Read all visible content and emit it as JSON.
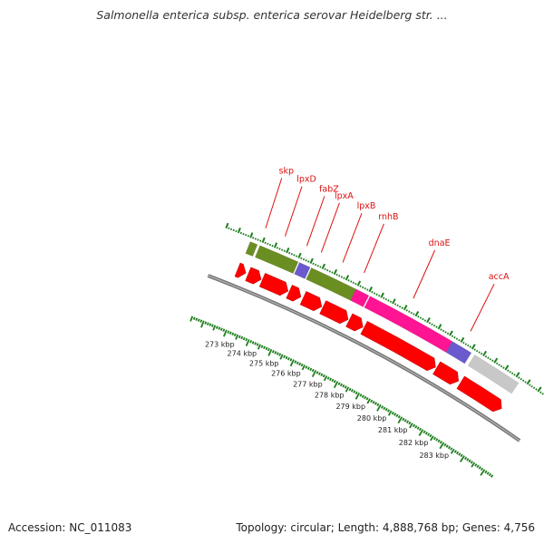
{
  "title": "Salmonella enterica subsp. enterica serovar Heidelberg str. ...",
  "accession": "Accession: NC_011083",
  "summary": "Topology: circular; Length: 4,888,768 bp; Genes: 4,756",
  "colors": {
    "cds": "#ff0000",
    "feature_green": "#6b8e23",
    "feature_purple": "#6a5acd",
    "feature_pink": "#ff1493",
    "feature_gray": "#c8c8c8",
    "backbone": "#777777",
    "ticks": "#1e7f1e",
    "gene_label": "#dd1111"
  },
  "genes": [
    {
      "name": "skp",
      "pos": 272.9
    },
    {
      "name": "lpxD",
      "pos": 273.7
    },
    {
      "name": "fabZ",
      "pos": 274.6
    },
    {
      "name": "lpxA",
      "pos": 275.2
    },
    {
      "name": "lpxB",
      "pos": 276.1
    },
    {
      "name": "rnhB",
      "pos": 277.0
    },
    {
      "name": "dnaE",
      "pos": 279.1
    },
    {
      "name": "accA",
      "pos": 281.6
    }
  ],
  "scale_labels": [
    "273 kbp",
    "274 kbp",
    "275 kbp",
    "276 kbp",
    "277 kbp",
    "278 kbp",
    "279 kbp",
    "280 kbp",
    "281 kbp",
    "282 kbp",
    "283 kbp"
  ],
  "features": [
    {
      "kind": "feature_green",
      "start": 272.55,
      "end": 272.85
    },
    {
      "kind": "feature_green",
      "start": 272.95,
      "end": 274.55
    },
    {
      "kind": "feature_purple",
      "start": 274.6,
      "end": 275.05
    },
    {
      "kind": "feature_green",
      "start": 275.1,
      "end": 277.0
    },
    {
      "kind": "feature_pink",
      "start": 277.0,
      "end": 277.55
    },
    {
      "kind": "feature_pink",
      "start": 277.6,
      "end": 281.2
    },
    {
      "kind": "feature_purple",
      "start": 281.2,
      "end": 282.05
    },
    {
      "kind": "feature_gray",
      "start": 282.2,
      "end": 284.2
    }
  ],
  "cds": [
    {
      "start": 272.5,
      "end": 272.85
    },
    {
      "start": 272.95,
      "end": 273.5
    },
    {
      "start": 273.55,
      "end": 274.65
    },
    {
      "start": 274.7,
      "end": 275.2
    },
    {
      "start": 275.3,
      "end": 276.1
    },
    {
      "start": 276.15,
      "end": 277.25
    },
    {
      "start": 277.3,
      "end": 277.9
    },
    {
      "start": 277.95,
      "end": 281.15
    },
    {
      "start": 281.2,
      "end": 282.2
    },
    {
      "start": 282.3,
      "end": 284.2
    }
  ]
}
